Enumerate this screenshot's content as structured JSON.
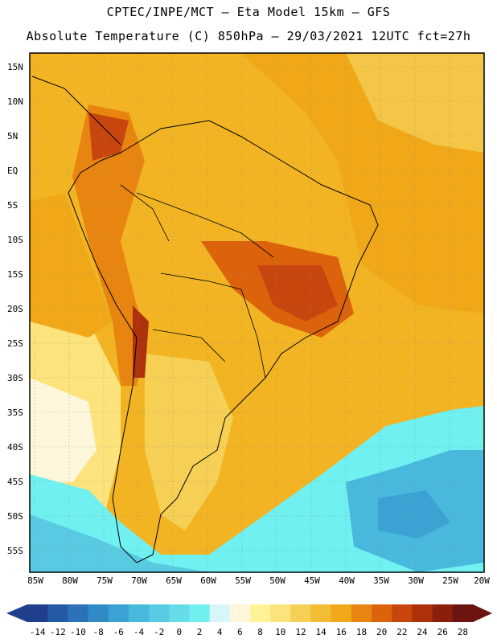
{
  "title_line1": "CPTEC/INPE/MCT —  Eta Model 15km — GFS",
  "title_line2": "Absolute Temperature (C) 850hPa — 29/03/2021 12UTC fct=27h",
  "lat_labels": [
    "15N",
    "10N",
    "5N",
    "EQ",
    "5S",
    "10S",
    "15S",
    "20S",
    "25S",
    "30S",
    "35S",
    "40S",
    "45S",
    "50S",
    "55S"
  ],
  "lon_labels": [
    "85W",
    "80W",
    "75W",
    "70W",
    "65W",
    "60W",
    "55W",
    "50W",
    "45W",
    "40W",
    "35W",
    "30W",
    "25W",
    "20W"
  ],
  "colorbar": {
    "labels": [
      "-14",
      "-12",
      "-10",
      "-8",
      "-6",
      "-4",
      "-2",
      "0",
      "2",
      "4",
      "6",
      "8",
      "10",
      "12",
      "14",
      "16",
      "18",
      "20",
      "22",
      "24",
      "26",
      "28"
    ],
    "colors": [
      "#1f3e8c",
      "#245aa4",
      "#2b72b8",
      "#2f8ac6",
      "#3aa3d4",
      "#48b9dc",
      "#58cbe2",
      "#66dce9",
      "#70f0f0",
      "#d8f6f8",
      "#fff7dc",
      "#fff39a",
      "#fde37c",
      "#f6cf55",
      "#f2bd35",
      "#f0a818",
      "#e88510",
      "#dc620c",
      "#c8460e",
      "#ad320c",
      "#8a200c",
      "#6b1410"
    ],
    "min": -14,
    "max": 28
  },
  "map": {
    "lon_range": [
      -85,
      -20
    ],
    "lat_range": [
      -58,
      17
    ],
    "background_color": "#f2b422",
    "gridlines": "dotted"
  }
}
